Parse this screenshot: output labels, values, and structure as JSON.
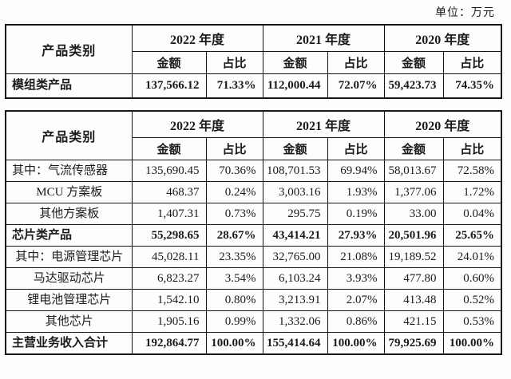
{
  "unit_label": "单位：万元",
  "columns": {
    "category": "产品类别",
    "years": [
      "2022 年度",
      "2021 年度",
      "2020 年度"
    ],
    "amount": "金额",
    "ratio": "占比"
  },
  "table1": {
    "rows": [
      {
        "label": "模组类产品",
        "bold": true,
        "align": "left",
        "values": [
          "137,566.12",
          "71.33%",
          "112,000.44",
          "72.07%",
          "59,423.73",
          "74.35%"
        ]
      }
    ]
  },
  "table2": {
    "rows": [
      {
        "label": "其中：气流传感器",
        "bold": false,
        "align": "left",
        "values": [
          "135,690.45",
          "70.36%",
          "108,701.53",
          "69.94%",
          "58,013.67",
          "72.58%"
        ]
      },
      {
        "label": "MCU 方案板",
        "bold": false,
        "align": "center",
        "values": [
          "468.37",
          "0.24%",
          "3,003.16",
          "1.93%",
          "1,377.06",
          "1.72%"
        ]
      },
      {
        "label": "其他方案板",
        "bold": false,
        "align": "center",
        "values": [
          "1,407.31",
          "0.73%",
          "295.75",
          "0.19%",
          "33.00",
          "0.04%"
        ]
      },
      {
        "label": "芯片类产品",
        "bold": true,
        "align": "left",
        "values": [
          "55,298.65",
          "28.67%",
          "43,414.21",
          "27.93%",
          "20,501.96",
          "25.65%"
        ]
      },
      {
        "label": "其中：电源管理芯片",
        "bold": false,
        "align": "center",
        "values": [
          "45,028.11",
          "23.35%",
          "32,765.00",
          "21.08%",
          "19,189.52",
          "24.01%"
        ]
      },
      {
        "label": "马达驱动芯片",
        "bold": false,
        "align": "center",
        "values": [
          "6,823.27",
          "3.54%",
          "6,103.24",
          "3.93%",
          "477.80",
          "0.60%"
        ]
      },
      {
        "label": "锂电池管理芯片",
        "bold": false,
        "align": "center",
        "values": [
          "1,542.10",
          "0.80%",
          "3,213.91",
          "2.07%",
          "413.48",
          "0.52%"
        ]
      },
      {
        "label": "其他芯片",
        "bold": false,
        "align": "center",
        "values": [
          "1,905.16",
          "0.99%",
          "1,332.06",
          "0.86%",
          "421.15",
          "0.53%"
        ]
      },
      {
        "label": "主营业务收入合计",
        "bold": true,
        "align": "left",
        "values": [
          "192,864.77",
          "100.00%",
          "155,414.64",
          "100.00%",
          "79,925.69",
          "100.00%"
        ]
      }
    ]
  }
}
